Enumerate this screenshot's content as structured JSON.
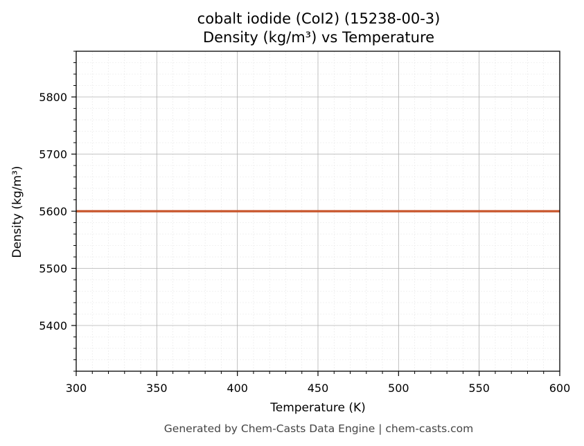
{
  "chart_data": {
    "type": "line",
    "title": "cobalt iodide (CoI2) (15238-00-3)",
    "subtitle": "Density (kg/m³) vs Temperature",
    "xlabel": "Temperature (K)",
    "ylabel": "Density (kg/m³)",
    "xlim": [
      300,
      600
    ],
    "ylim": [
      5320,
      5880
    ],
    "xticks": [
      300,
      350,
      400,
      450,
      500,
      550,
      600
    ],
    "yticks": [
      5400,
      5500,
      5600,
      5700,
      5800
    ],
    "x_minor_step": 10,
    "y_minor_step": 20,
    "grid": true,
    "series": [
      {
        "color": "#c8552b",
        "x": [
          300,
          600
        ],
        "y": [
          5600,
          5600
        ]
      }
    ]
  },
  "footer": "Generated by Chem-Casts Data Engine | chem-casts.com"
}
